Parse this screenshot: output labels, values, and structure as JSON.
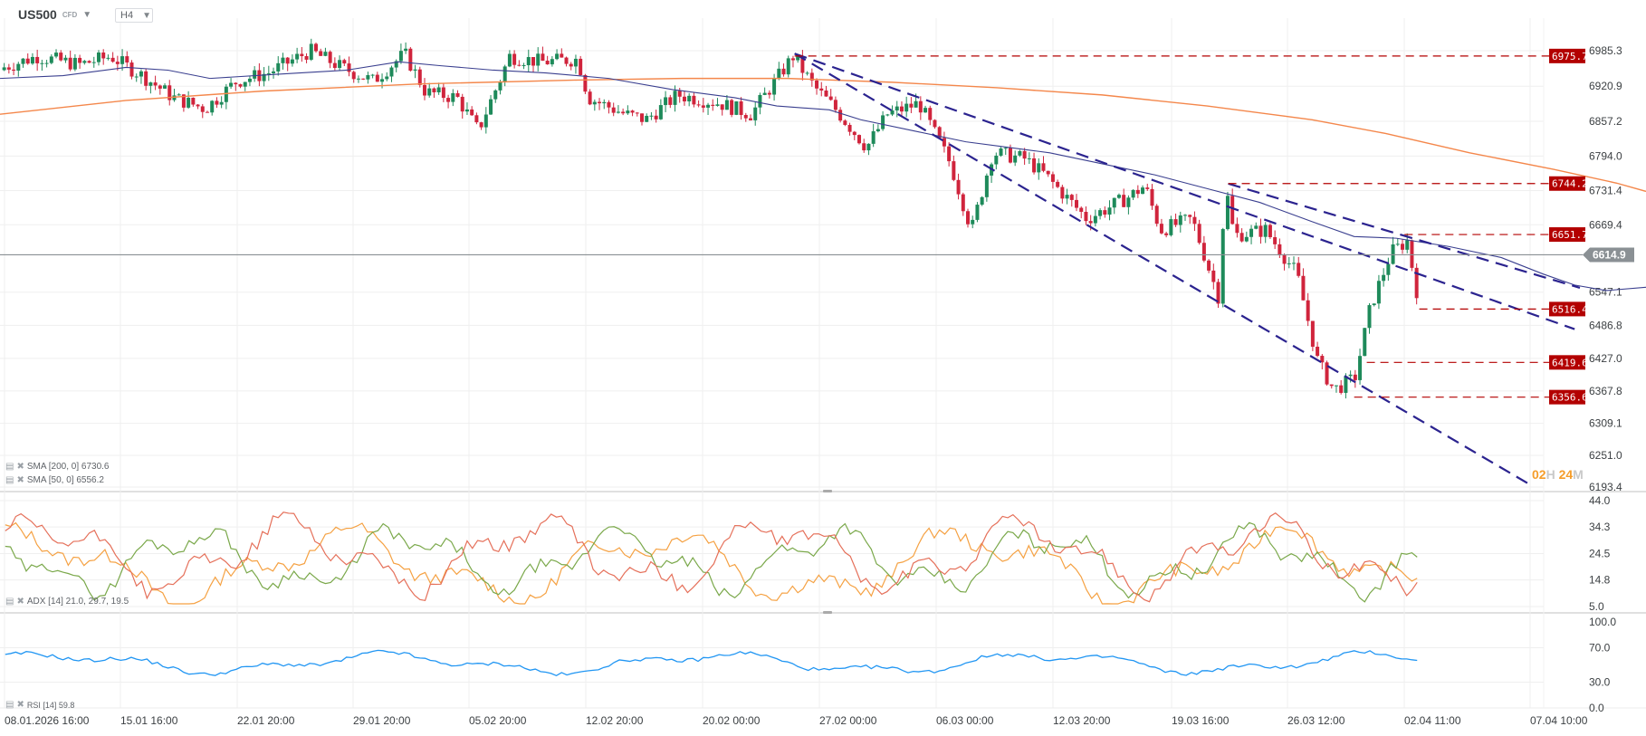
{
  "header": {
    "symbol": "US500",
    "instrument_type": "CFD",
    "timeframe": "H4"
  },
  "legends": {
    "sma200": "SMA [200, 0] 6730.6",
    "sma50": "SMA [50, 0] 6556.2",
    "adx": "ADX [14] 21.0, 29.7, 19.5",
    "rsi": "RSI [14] 59.8"
  },
  "countdown": {
    "hours": "02",
    "h_unit": "H",
    "minutes": "24",
    "m_unit": "M"
  },
  "current_price": "6614.9",
  "colors": {
    "bull": "#1e8a5a",
    "bear": "#d0243c",
    "sma200": "#f4874b",
    "sma50": "#3a3f8f",
    "trend": "#2b238f",
    "level": "#b30000",
    "adx": "#f5a142",
    "plus_di": "#7aa84a",
    "minus_di": "#e5705a",
    "rsi": "#2196f3",
    "grid": "#efefef",
    "price_line": "#8a9094"
  },
  "chart_data": [
    {
      "type": "candlestick",
      "title": "US500 CFD H4",
      "ylim": [
        6193.4,
        6985.3
      ],
      "yticks": [
        6985.3,
        6920.9,
        6857.2,
        6794.0,
        6731.4,
        6669.4,
        6547.1,
        6486.8,
        6427.0,
        6367.8,
        6309.1,
        6251.0,
        6193.4
      ],
      "xticks": [
        "08.01.2026 16:00",
        "15.01 16:00",
        "22.01 20:00",
        "29.01 20:00",
        "05.02 20:00",
        "12.02 20:00",
        "20.02 00:00",
        "27.02 00:00",
        "06.03 00:00",
        "12.03 20:00",
        "19.03 16:00",
        "26.03 12:00",
        "02.04 11:00",
        "07.04 10:00"
      ],
      "price_levels": [
        6975.7,
        6744.2,
        6651.7,
        6516.4,
        6419.6,
        6356.6
      ],
      "current_price": 6614.9,
      "series": [
        {
          "name": "SMA [200, 0]",
          "last": 6730.6,
          "points": [
            [
              0,
              6870
            ],
            [
              120,
              6895
            ],
            [
              250,
              6912
            ],
            [
              400,
              6925
            ],
            [
              550,
              6932
            ],
            [
              650,
              6935
            ],
            [
              750,
              6935
            ],
            [
              850,
              6928
            ],
            [
              950,
              6918
            ],
            [
              1050,
              6905
            ],
            [
              1150,
              6885
            ],
            [
              1250,
              6860
            ],
            [
              1320,
              6835
            ],
            [
              1400,
              6800
            ],
            [
              1480,
              6770
            ],
            [
              1540,
              6745
            ],
            [
              1568,
              6730
            ]
          ]
        },
        {
          "name": "SMA [50, 0]",
          "last": 6556.2,
          "points": [
            [
              0,
              6935
            ],
            [
              60,
              6940
            ],
            [
              120,
              6955
            ],
            [
              160,
              6950
            ],
            [
              200,
              6935
            ],
            [
              260,
              6942
            ],
            [
              330,
              6950
            ],
            [
              380,
              6965
            ],
            [
              420,
              6958
            ],
            [
              470,
              6950
            ],
            [
              520,
              6945
            ],
            [
              580,
              6935
            ],
            [
              640,
              6915
            ],
            [
              700,
              6900
            ],
            [
              740,
              6885
            ],
            [
              790,
              6878
            ],
            [
              820,
              6860
            ],
            [
              870,
              6840
            ],
            [
              920,
              6820
            ],
            [
              960,
              6810
            ],
            [
              1000,
              6800
            ],
            [
              1050,
              6780
            ],
            [
              1100,
              6760
            ],
            [
              1150,
              6735
            ],
            [
              1200,
              6710
            ],
            [
              1250,
              6675
            ],
            [
              1290,
              6648
            ],
            [
              1330,
              6645
            ],
            [
              1380,
              6630
            ],
            [
              1430,
              6610
            ],
            [
              1470,
              6580
            ],
            [
              1500,
              6560
            ],
            [
              1530,
              6550
            ],
            [
              1568,
              6556
            ]
          ]
        }
      ],
      "candles_ohlc_sample": "approximately 300 H4 candles from 08.01.2026 to 02.04.2026; range ~6350–6990",
      "trendlines": [
        {
          "from": [
            757,
            6980
          ],
          "to": [
            1460,
            6195
          ]
        },
        {
          "from": [
            757,
            6980
          ],
          "to": [
            1500,
            6480
          ]
        },
        {
          "from": [
            1170,
            6744
          ],
          "to": [
            1505,
            6555
          ]
        }
      ]
    },
    {
      "type": "line",
      "title": "ADX [14]",
      "ylim": [
        5.0,
        44.0
      ],
      "yticks": [
        44.0,
        34.3,
        24.5,
        14.8,
        5.0
      ],
      "series": [
        {
          "name": "ADX",
          "last": 21.0
        },
        {
          "name": "+DI",
          "last": 29.7
        },
        {
          "name": "-DI",
          "last": 19.5
        }
      ]
    },
    {
      "type": "line",
      "title": "RSI [14]",
      "ylim": [
        0.0,
        100.0
      ],
      "yticks": [
        100.0,
        70.0,
        30.0,
        0.0
      ],
      "series": [
        {
          "name": "RSI",
          "last": 59.8
        }
      ]
    }
  ]
}
